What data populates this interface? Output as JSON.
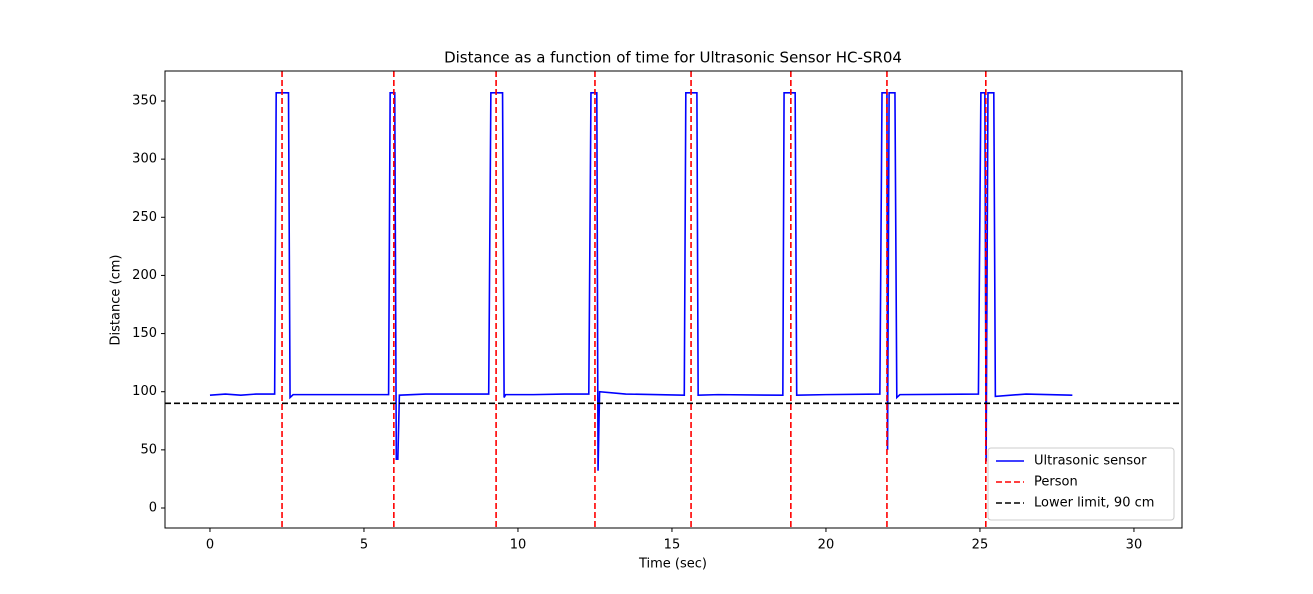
{
  "chart_data": {
    "type": "line",
    "title": "Distance as a function of time for Ultrasonic Sensor HC-SR04",
    "xlabel": "Time (sec)",
    "ylabel": "Distance (cm)",
    "xlim": [
      -1.46,
      31.56
    ],
    "ylim": [
      -17.2,
      375.8
    ],
    "xticks": [
      0,
      5,
      10,
      15,
      20,
      25,
      30
    ],
    "yticks": [
      0,
      50,
      100,
      150,
      200,
      250,
      300,
      350
    ],
    "legend": "lower right",
    "series": [
      {
        "name": "Ultrasonic sensor",
        "color": "#0000ff",
        "x": [
          0,
          0.5,
          1,
          1.5,
          2.1,
          2.15,
          2.55,
          2.6,
          2.7,
          3.5,
          5.8,
          5.85,
          6.0,
          6.05,
          6.1,
          6.15,
          7,
          8,
          9.05,
          9.12,
          9.5,
          9.55,
          9.6,
          10.5,
          11.5,
          12.3,
          12.37,
          12.56,
          12.6,
          12.65,
          13.5,
          15.4,
          15.45,
          15.81,
          15.85,
          16.5,
          18.6,
          18.64,
          19.0,
          19.05,
          20,
          21.75,
          21.82,
          21.98,
          22.0,
          22.05,
          22.24,
          22.3,
          22.4,
          24.95,
          25.03,
          25.16,
          25.2,
          25.26,
          25.45,
          25.5,
          26.5,
          28.0
        ],
        "values": [
          97,
          98,
          97,
          98,
          98,
          357,
          357,
          95,
          97.5,
          97.5,
          97.5,
          357,
          357,
          42,
          42,
          97,
          98,
          98,
          98,
          357,
          357,
          95,
          97.5,
          97.5,
          98,
          98,
          357,
          357,
          32,
          100,
          98,
          97,
          357,
          357,
          97,
          97.5,
          97,
          357,
          357,
          97,
          97.5,
          98,
          357,
          357,
          50,
          357,
          357,
          95,
          97.5,
          98,
          357,
          357,
          40,
          357,
          357,
          96,
          98,
          97
        ]
      }
    ],
    "vlines": {
      "name": "Person",
      "color": "#ff0000",
      "x": [
        2.34,
        5.97,
        9.29,
        12.5,
        15.62,
        18.86,
        21.98,
        25.19
      ]
    },
    "hline": {
      "name": "Lower limit, 90 cm",
      "color": "#000000",
      "value": 90
    }
  }
}
